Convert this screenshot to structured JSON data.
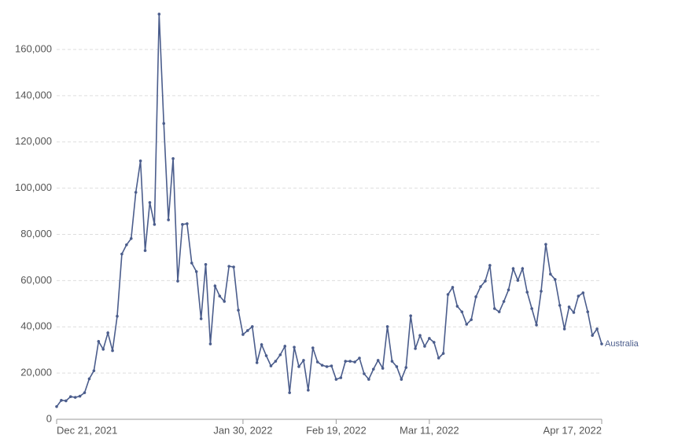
{
  "chart_data": {
    "type": "line",
    "x": [
      "2021-12-21",
      "2021-12-22",
      "2021-12-23",
      "2021-12-24",
      "2021-12-25",
      "2021-12-26",
      "2021-12-27",
      "2021-12-28",
      "2021-12-29",
      "2021-12-30",
      "2021-12-31",
      "2022-01-01",
      "2022-01-02",
      "2022-01-03",
      "2022-01-04",
      "2022-01-05",
      "2022-01-06",
      "2022-01-07",
      "2022-01-08",
      "2022-01-09",
      "2022-01-10",
      "2022-01-11",
      "2022-01-12",
      "2022-01-13",
      "2022-01-14",
      "2022-01-15",
      "2022-01-16",
      "2022-01-17",
      "2022-01-18",
      "2022-01-19",
      "2022-01-20",
      "2022-01-21",
      "2022-01-22",
      "2022-01-23",
      "2022-01-24",
      "2022-01-25",
      "2022-01-26",
      "2022-01-27",
      "2022-01-28",
      "2022-01-29",
      "2022-01-30",
      "2022-01-31",
      "2022-02-01",
      "2022-02-02",
      "2022-02-03",
      "2022-02-04",
      "2022-02-05",
      "2022-02-06",
      "2022-02-07",
      "2022-02-08",
      "2022-02-09",
      "2022-02-10",
      "2022-02-11",
      "2022-02-12",
      "2022-02-13",
      "2022-02-14",
      "2022-02-15",
      "2022-02-16",
      "2022-02-17",
      "2022-02-18",
      "2022-02-19",
      "2022-02-20",
      "2022-02-21",
      "2022-02-22",
      "2022-02-23",
      "2022-02-24",
      "2022-02-25",
      "2022-02-26",
      "2022-02-27",
      "2022-02-28",
      "2022-03-01",
      "2022-03-02",
      "2022-03-03",
      "2022-03-04",
      "2022-03-05",
      "2022-03-06",
      "2022-03-07",
      "2022-03-08",
      "2022-03-09",
      "2022-03-10",
      "2022-03-11",
      "2022-03-12",
      "2022-03-13",
      "2022-03-14",
      "2022-03-15",
      "2022-03-16",
      "2022-03-17",
      "2022-03-18",
      "2022-03-19",
      "2022-03-20",
      "2022-03-21",
      "2022-03-22",
      "2022-03-23",
      "2022-03-24",
      "2022-03-25",
      "2022-03-26",
      "2022-03-27",
      "2022-03-28",
      "2022-03-29",
      "2022-03-30",
      "2022-03-31",
      "2022-04-01",
      "2022-04-02",
      "2022-04-03",
      "2022-04-04",
      "2022-04-05",
      "2022-04-06",
      "2022-04-07",
      "2022-04-08",
      "2022-04-09",
      "2022-04-10",
      "2022-04-11",
      "2022-04-12",
      "2022-04-13",
      "2022-04-14",
      "2022-04-15",
      "2022-04-16",
      "2022-04-17"
    ],
    "series": [
      {
        "name": "Australia",
        "color": "#4b5d8c",
        "values": [
          5500,
          8200,
          8000,
          9800,
          9500,
          10000,
          11500,
          17500,
          21000,
          33700,
          30300,
          37400,
          29700,
          44600,
          71500,
          75500,
          78200,
          98200,
          111800,
          73000,
          93800,
          84300,
          175300,
          128000,
          86300,
          112800,
          59800,
          84300,
          84600,
          67600,
          63900,
          43500,
          67000,
          32600,
          57700,
          53300,
          51000,
          66200,
          65900,
          47200,
          36700,
          38400,
          40100,
          24500,
          32300,
          27500,
          23100,
          25100,
          27900,
          31600,
          11500,
          31200,
          22800,
          25500,
          12600,
          30900,
          24800,
          23400,
          22800,
          23100,
          17300,
          18000,
          25100,
          25100,
          24800,
          26500,
          19700,
          17300,
          21700,
          25500,
          22100,
          40100,
          25100,
          22800,
          17300,
          22400,
          44800,
          30600,
          36300,
          31600,
          35000,
          33300,
          26500,
          28500,
          54000,
          57100,
          48900,
          46500,
          41100,
          43100,
          53000,
          57400,
          59800,
          66600,
          47900,
          46500,
          51000,
          56000,
          65200,
          60100,
          65200,
          55000,
          47900,
          40800,
          55400,
          75700,
          62800,
          60500,
          49300,
          39100,
          48600,
          46200,
          53300,
          54700,
          46500,
          36300,
          39100,
          32600
        ]
      }
    ],
    "xlim": [
      "2021-12-21",
      "2022-04-17"
    ],
    "xticks": [
      {
        "value": "2021-12-21",
        "label": "Dec 21, 2021"
      },
      {
        "value": "2022-01-30",
        "label": "Jan 30, 2022"
      },
      {
        "value": "2022-02-19",
        "label": "Feb 19, 2022"
      },
      {
        "value": "2022-03-11",
        "label": "Mar 11, 2022"
      },
      {
        "value": "2022-04-17",
        "label": "Apr 17, 2022"
      }
    ],
    "ylim": [
      0,
      160000
    ],
    "yticks": [
      0,
      {
        "value": 20000,
        "label": "20,000"
      },
      {
        "value": 40000,
        "label": "40,000"
      },
      {
        "value": 60000,
        "label": "60,000"
      },
      {
        "value": 80000,
        "label": "80,000"
      },
      {
        "value": 100000,
        "label": "100,000"
      },
      {
        "value": 120000,
        "label": "120,000"
      },
      {
        "value": 140000,
        "label": "140,000"
      },
      {
        "value": 160000,
        "label": "160,000"
      }
    ],
    "grid": true
  }
}
